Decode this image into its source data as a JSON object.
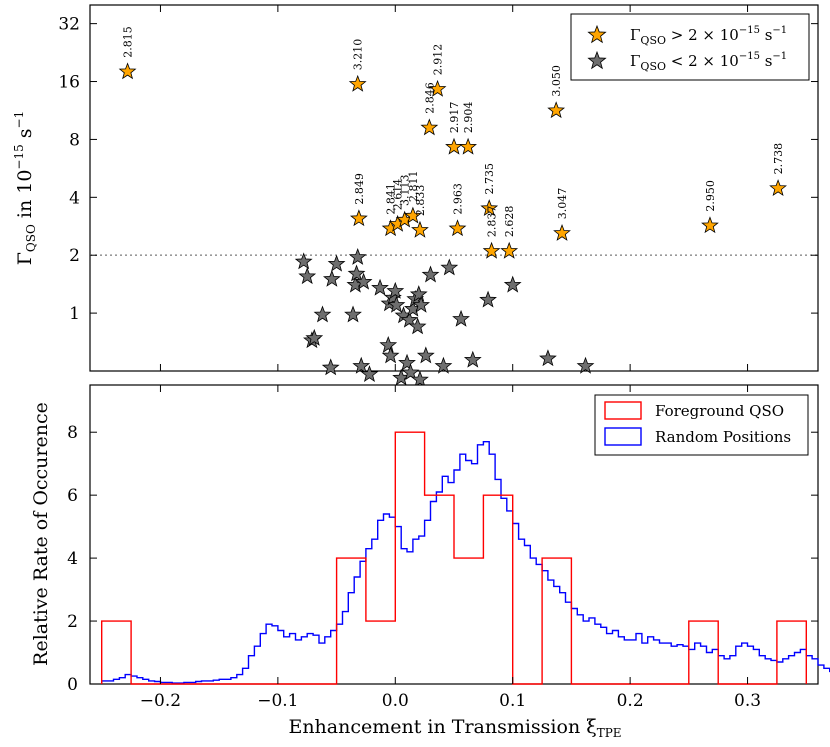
{
  "chart_data": [
    {
      "type": "scatter",
      "title": "",
      "xlabel": "",
      "ylabel": "Γ_QSO in 10^-15 s^-1",
      "ylabel_parts": {
        "gamma": "Γ",
        "sub": "QSO",
        "mid": " in 10",
        "sup": "−15",
        "unit": " s",
        "unit_sup": "−1"
      },
      "yscale": "log2",
      "xlim": [
        -0.26,
        0.36
      ],
      "ylim": [
        0.5,
        40
      ],
      "yticks": [
        1,
        2,
        4,
        8,
        16,
        32
      ],
      "ytick_labels": [
        "1",
        "2",
        "4",
        "8",
        "16",
        "32"
      ],
      "threshold_line": 2,
      "legend_position": "top-right",
      "colors": {
        "above": "#ffa500",
        "below": "#6e6e6e",
        "threshold": "#999999"
      },
      "legend": [
        {
          "label_parts": {
            "gamma": "Γ",
            "sub": "QSO",
            "rel": " > 2 × 10",
            "sup": "−15",
            "unit": " s",
            "unit_sup": "−1"
          },
          "color": "#ffa500"
        },
        {
          "label_parts": {
            "gamma": "Γ",
            "sub": "QSO",
            "rel": " < 2 × 10",
            "sup": "−15",
            "unit": " s",
            "unit_sup": "−1"
          },
          "color": "#6e6e6e"
        }
      ],
      "series": [
        {
          "points": [
            {
              "x": -0.228,
              "y": 18.0,
              "label": "2.815"
            },
            {
              "x": -0.032,
              "y": 15.5,
              "label": "3.210"
            },
            {
              "x": 0.036,
              "y": 14.6,
              "label": "2.912"
            },
            {
              "x": 0.137,
              "y": 11.3,
              "label": "3.050"
            },
            {
              "x": 0.029,
              "y": 9.2,
              "label": "2.846"
            },
            {
              "x": 0.05,
              "y": 7.3,
              "label": "2.917"
            },
            {
              "x": 0.062,
              "y": 7.3,
              "label": "2.904"
            },
            {
              "x": -0.031,
              "y": 3.1,
              "label": "2.849"
            },
            {
              "x": -0.004,
              "y": 2.75,
              "label": "2.841"
            },
            {
              "x": 0.002,
              "y": 2.9,
              "label": "2.614"
            },
            {
              "x": 0.008,
              "y": 3.05,
              "label": "3.113"
            },
            {
              "x": 0.015,
              "y": 3.2,
              "label": "2.811"
            },
            {
              "x": 0.021,
              "y": 2.7,
              "label": "2.833"
            },
            {
              "x": 0.053,
              "y": 2.75,
              "label": "2.963"
            },
            {
              "x": 0.08,
              "y": 3.5,
              "label": "2.735"
            },
            {
              "x": 0.082,
              "y": 2.1,
              "label": "2.837"
            },
            {
              "x": 0.097,
              "y": 2.1,
              "label": "2.628"
            },
            {
              "x": 0.142,
              "y": 2.6,
              "label": "3.047"
            },
            {
              "x": 0.268,
              "y": 2.85,
              "label": "2.950"
            },
            {
              "x": 0.326,
              "y": 4.45,
              "label": "2.738"
            }
          ]
        },
        {
          "points": [
            {
              "x": -0.078,
              "y": 1.85
            },
            {
              "x": -0.075,
              "y": 1.55
            },
            {
              "x": -0.071,
              "y": 0.72
            },
            {
              "x": -0.069,
              "y": 0.74
            },
            {
              "x": -0.062,
              "y": 0.98
            },
            {
              "x": -0.055,
              "y": 0.52
            },
            {
              "x": -0.054,
              "y": 1.5
            },
            {
              "x": -0.05,
              "y": 1.8
            },
            {
              "x": -0.036,
              "y": 0.98
            },
            {
              "x": -0.034,
              "y": 1.4
            },
            {
              "x": -0.033,
              "y": 1.6
            },
            {
              "x": -0.032,
              "y": 1.95
            },
            {
              "x": -0.029,
              "y": 0.53
            },
            {
              "x": -0.027,
              "y": 1.45
            },
            {
              "x": -0.022,
              "y": 0.48
            },
            {
              "x": -0.013,
              "y": 1.35
            },
            {
              "x": -0.006,
              "y": 0.68
            },
            {
              "x": -0.005,
              "y": 1.12
            },
            {
              "x": -0.004,
              "y": 0.6
            },
            {
              "x": -0.002,
              "y": 1.2
            },
            {
              "x": 0.0,
              "y": 1.3
            },
            {
              "x": 0.001,
              "y": 1.1
            },
            {
              "x": 0.005,
              "y": 0.46
            },
            {
              "x": 0.007,
              "y": 0.97
            },
            {
              "x": 0.01,
              "y": 0.55
            },
            {
              "x": 0.012,
              "y": 0.92
            },
            {
              "x": 0.013,
              "y": 0.49
            },
            {
              "x": 0.015,
              "y": 1.05
            },
            {
              "x": 0.017,
              "y": 1.18
            },
            {
              "x": 0.019,
              "y": 0.85
            },
            {
              "x": 0.02,
              "y": 1.25
            },
            {
              "x": 0.021,
              "y": 0.45
            },
            {
              "x": 0.022,
              "y": 1.1
            },
            {
              "x": 0.026,
              "y": 0.6
            },
            {
              "x": 0.03,
              "y": 1.58
            },
            {
              "x": 0.041,
              "y": 0.53
            },
            {
              "x": 0.046,
              "y": 1.72
            },
            {
              "x": 0.056,
              "y": 0.93
            },
            {
              "x": 0.066,
              "y": 0.57
            },
            {
              "x": 0.079,
              "y": 1.17
            },
            {
              "x": 0.1,
              "y": 1.4
            },
            {
              "x": 0.13,
              "y": 0.58
            },
            {
              "x": 0.162,
              "y": 0.53
            }
          ]
        }
      ]
    },
    {
      "type": "step-histogram",
      "title": "",
      "xlabel_parts": {
        "text": "Enhancement in Transmission ",
        "xi": "ξ",
        "sub": "TPE"
      },
      "ylabel": "Relative Rate of Occurence",
      "xlim": [
        -0.26,
        0.36
      ],
      "ylim": [
        0,
        9.5
      ],
      "xticks": [
        -0.2,
        -0.1,
        0.0,
        0.1,
        0.2,
        0.3
      ],
      "xtick_labels": [
        "−0.2",
        "−0.1",
        "0.0",
        "0.1",
        "0.2",
        "0.3"
      ],
      "yticks": [
        0,
        2,
        4,
        6,
        8
      ],
      "ytick_labels": [
        "0",
        "2",
        "4",
        "6",
        "8"
      ],
      "legend_position": "top-right",
      "legend": [
        {
          "label": "Foreground QSO",
          "color": "#ff0000"
        },
        {
          "label": "Random Positions",
          "color": "#0000ff"
        }
      ],
      "series": [
        {
          "name": "Foreground QSO",
          "color": "#ff0000",
          "bin_edges": [
            -0.25,
            -0.225,
            -0.2,
            -0.175,
            -0.15,
            -0.125,
            -0.1,
            -0.075,
            -0.05,
            -0.025,
            0.0,
            0.025,
            0.05,
            0.075,
            0.1,
            0.125,
            0.15,
            0.175,
            0.2,
            0.225,
            0.25,
            0.275,
            0.3,
            0.325,
            0.35
          ],
          "values": [
            2,
            0,
            0,
            0,
            0,
            0,
            0,
            0,
            4,
            2,
            8,
            6,
            4,
            6,
            0,
            4,
            0,
            0,
            0,
            0,
            2,
            0,
            0,
            2
          ]
        },
        {
          "name": "Random Positions",
          "color": "#0000ff",
          "bin_start": -0.25,
          "bin_width": 0.005,
          "values": [
            0.1,
            0.1,
            0.15,
            0.2,
            0.3,
            0.25,
            0.2,
            0.15,
            0.1,
            0.08,
            0.05,
            0.05,
            0.03,
            0.03,
            0.05,
            0.05,
            0.08,
            0.1,
            0.1,
            0.12,
            0.15,
            0.15,
            0.2,
            0.3,
            0.5,
            0.9,
            1.2,
            1.6,
            1.9,
            1.85,
            1.7,
            1.5,
            1.6,
            1.4,
            1.5,
            1.6,
            1.55,
            1.3,
            1.5,
            1.7,
            1.9,
            2.3,
            2.9,
            3.4,
            3.9,
            4.3,
            4.6,
            5.2,
            5.4,
            5.3,
            5.0,
            4.3,
            4.2,
            4.6,
            4.7,
            5.2,
            5.8,
            6.1,
            6.6,
            6.4,
            6.8,
            7.3,
            7.1,
            7.0,
            7.6,
            7.7,
            7.3,
            6.5,
            5.9,
            5.5,
            5.1,
            4.6,
            4.4,
            4.0,
            3.8,
            3.6,
            3.3,
            3.1,
            2.9,
            2.6,
            2.4,
            2.2,
            2.0,
            2.1,
            1.9,
            1.8,
            1.6,
            1.7,
            1.5,
            1.4,
            1.4,
            1.6,
            1.3,
            1.5,
            1.4,
            1.3,
            1.3,
            1.2,
            1.25,
            1.2,
            1.1,
            1.3,
            1.2,
            1.0,
            1.1,
            0.9,
            0.8,
            0.9,
            1.2,
            1.3,
            1.2,
            1.1,
            0.9,
            0.8,
            0.75,
            0.7,
            0.8,
            0.9,
            1.0,
            1.1,
            0.9,
            0.8,
            0.6,
            0.5,
            0.4,
            0.35,
            0.3,
            0.3,
            0.35,
            0.4,
            0.5,
            0.4,
            0.3,
            0.35,
            0.3,
            0.25,
            0.2,
            0.25,
            0.2,
            0.3,
            0.25,
            0.2,
            0.15,
            0.1,
            0.15,
            0.1,
            0.12,
            0.1,
            0.08,
            0.1,
            0.2,
            0.15,
            0.1,
            0.08,
            0.05,
            0.1,
            0.08,
            0.05,
            0.1,
            0.15,
            0.1,
            0.08,
            0.05,
            0.03,
            0.05,
            0.02,
            0.03,
            0.02,
            0.01,
            0.02,
            0.02,
            0.01,
            0.01,
            0.0,
            0.0,
            0.0
          ]
        }
      ]
    }
  ]
}
